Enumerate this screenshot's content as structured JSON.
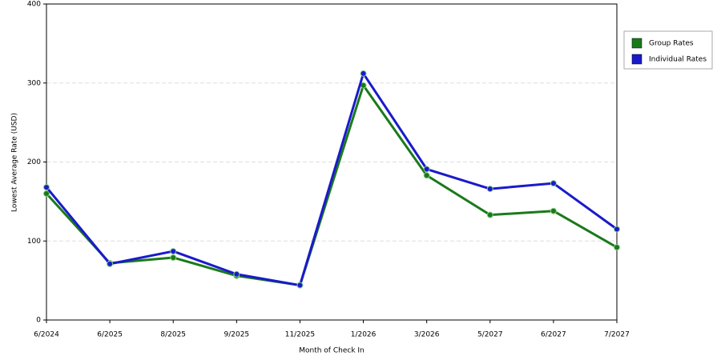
{
  "chart_data": {
    "type": "line",
    "y_label": "Lowest Average Rate (USD)",
    "x_label": "Month of Check In",
    "categories": [
      "6/2024",
      "6/2025",
      "8/2025",
      "9/2025",
      "11/2025",
      "1/2026",
      "3/2026",
      "5/2027",
      "6/2027",
      "7/2027"
    ],
    "series": [
      {
        "name": "Group Rates",
        "color": "#1a7a1a",
        "values": [
          160,
          72,
          79,
          56,
          44,
          297,
          183,
          133,
          138,
          92
        ]
      },
      {
        "name": "Individual Rates",
        "color": "#1a1acc",
        "values": [
          168,
          71,
          87,
          58,
          44,
          312,
          191,
          166,
          173,
          115
        ]
      }
    ],
    "ylim": [
      0,
      400
    ],
    "yticks": [
      0,
      100,
      200,
      300,
      400
    ],
    "grid": true,
    "legend": "right"
  }
}
